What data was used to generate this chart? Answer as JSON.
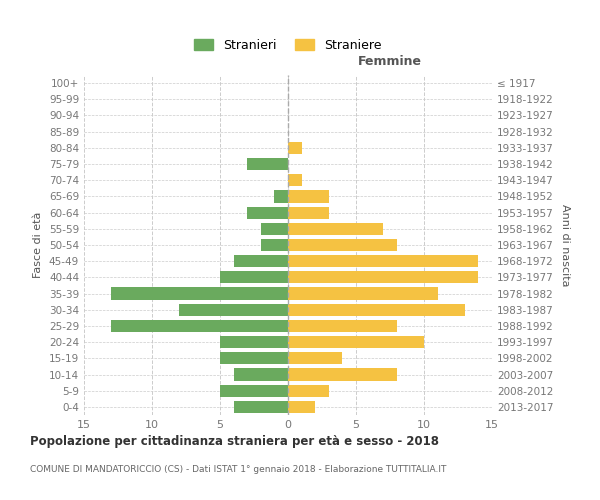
{
  "age_groups": [
    "0-4",
    "5-9",
    "10-14",
    "15-19",
    "20-24",
    "25-29",
    "30-34",
    "35-39",
    "40-44",
    "45-49",
    "50-54",
    "55-59",
    "60-64",
    "65-69",
    "70-74",
    "75-79",
    "80-84",
    "85-89",
    "90-94",
    "95-99",
    "100+"
  ],
  "birth_years": [
    "2013-2017",
    "2008-2012",
    "2003-2007",
    "1998-2002",
    "1993-1997",
    "1988-1992",
    "1983-1987",
    "1978-1982",
    "1973-1977",
    "1968-1972",
    "1963-1967",
    "1958-1962",
    "1953-1957",
    "1948-1952",
    "1943-1947",
    "1938-1942",
    "1933-1937",
    "1928-1932",
    "1923-1927",
    "1918-1922",
    "≤ 1917"
  ],
  "males": [
    4,
    5,
    4,
    5,
    5,
    13,
    8,
    13,
    5,
    4,
    2,
    2,
    3,
    1,
    0,
    3,
    0,
    0,
    0,
    0,
    0
  ],
  "females": [
    2,
    3,
    8,
    4,
    10,
    8,
    13,
    11,
    14,
    14,
    8,
    7,
    3,
    3,
    1,
    0,
    1,
    0,
    0,
    0,
    0
  ],
  "male_color": "#6aaa5e",
  "female_color": "#f5c242",
  "background_color": "#ffffff",
  "grid_color": "#cccccc",
  "title": "Popolazione per cittadinanza straniera per età e sesso - 2018",
  "subtitle": "COMUNE DI MANDATORICCIO (CS) - Dati ISTAT 1° gennaio 2018 - Elaborazione TUTTITALIA.IT",
  "xlabel_right": "Femmine",
  "ylabel_left": "Fasce di età",
  "ylabel_right": "Anni di nascita",
  "xlim": 15,
  "legend_males": "Stranieri",
  "legend_females": "Straniere"
}
